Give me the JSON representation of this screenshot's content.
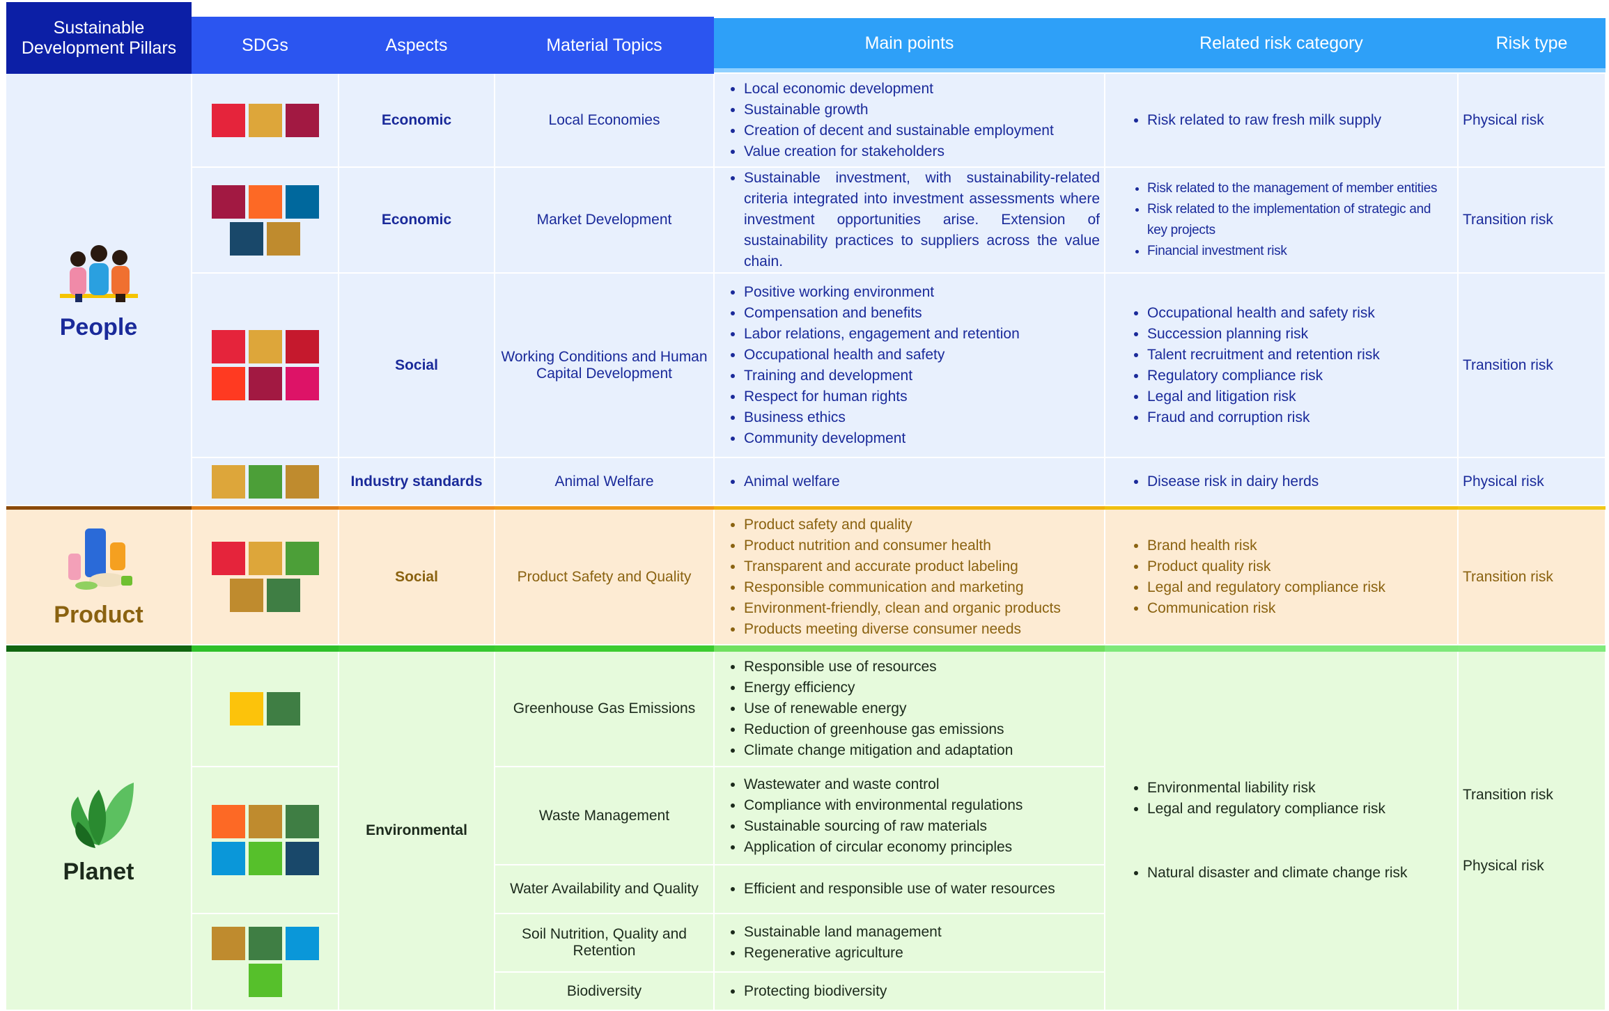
{
  "header": {
    "pillars": "Sustainable Development Pillars",
    "sdgs": "SDGs",
    "aspects": "Aspects",
    "material_topics": "Material Topics",
    "main_points": "Main points",
    "related_risk_category": "Related risk category",
    "risk_type": "Risk type"
  },
  "pillars": [
    {
      "name": "People",
      "rows": [
        {
          "aspect": "Economic",
          "topic": "Local Economies",
          "main_points": [
            "Local economic development",
            "Sustainable growth",
            "Creation of decent and sustainable employment",
            "Value creation for stakeholders"
          ],
          "risks": [
            "Risk related to raw fresh milk supply"
          ],
          "risk_type": "Physical risk"
        },
        {
          "aspect": "Economic",
          "topic": "Market Development",
          "main_points": [
            "Sustainable investment, with sustainability-related criteria integrated into investment assessments where investment opportunities arise. Extension of sustainability practices to suppliers across the value chain."
          ],
          "risks": [
            "Risk related to the management of member entities",
            "Risk related to the implementation of strategic and key projects",
            "Financial investment risk"
          ],
          "risk_type": "Transition risk"
        },
        {
          "aspect": "Social",
          "topic": "Working Conditions and Human Capital Development",
          "main_points": [
            "Positive working environment",
            "Compensation and benefits",
            "Labor relations, engagement and retention",
            "Occupational health and safety",
            "Training and development",
            "Respect for human rights",
            "Business ethics",
            "Community development"
          ],
          "risks": [
            "Occupational health and safety risk",
            "Succession planning risk",
            "Talent recruitment and retention risk",
            "Regulatory compliance risk",
            "Legal and litigation risk",
            "Fraud and corruption risk"
          ],
          "risk_type": "Transition risk"
        },
        {
          "aspect": "Industry standards",
          "topic": "Animal Welfare",
          "main_points": [
            "Animal welfare"
          ],
          "risks": [
            "Disease risk in dairy herds"
          ],
          "risk_type": "Physical risk"
        }
      ]
    },
    {
      "name": "Product",
      "rows": [
        {
          "aspect": "Social",
          "topic": "Product Safety and Quality",
          "main_points": [
            "Product safety and quality",
            "Product nutrition and consumer health",
            "Transparent and accurate product labeling",
            "Responsible communication and marketing",
            "Environment-friendly, clean and organic products",
            "Products meeting diverse consumer needs"
          ],
          "risks": [
            "Brand health risk",
            "Product quality risk",
            "Legal and regulatory compliance risk",
            "Communication risk"
          ],
          "risk_type": "Transition risk"
        }
      ]
    },
    {
      "name": "Planet",
      "aspect": "Environmental",
      "risks": [
        "Environmental liability risk",
        "Legal and regulatory compliance risk",
        "Natural disaster and climate change risk"
      ],
      "risk_types": [
        "Transition risk",
        "Physical risk"
      ],
      "rows": [
        {
          "topic": "Greenhouse Gas Emissions",
          "main_points": [
            "Responsible use of resources",
            "Energy efficiency",
            "Use of renewable energy",
            "Reduction of greenhouse gas emissions",
            "Climate change mitigation and adaptation"
          ]
        },
        {
          "topic": "Waste Management",
          "main_points": [
            "Wastewater and waste control",
            "Compliance with environmental regulations",
            "Sustainable sourcing of raw materials",
            "Application of circular economy principles"
          ]
        },
        {
          "topic": "Water Availability and Quality",
          "main_points": [
            "Efficient and responsible use of water resources"
          ]
        },
        {
          "topic": "Soil Nutrition, Quality and Retention",
          "main_points": [
            "Sustainable land management",
            "Regenerative agriculture"
          ]
        },
        {
          "topic": "Biodiversity",
          "main_points": [
            "Protecting biodiversity"
          ]
        }
      ]
    }
  ]
}
